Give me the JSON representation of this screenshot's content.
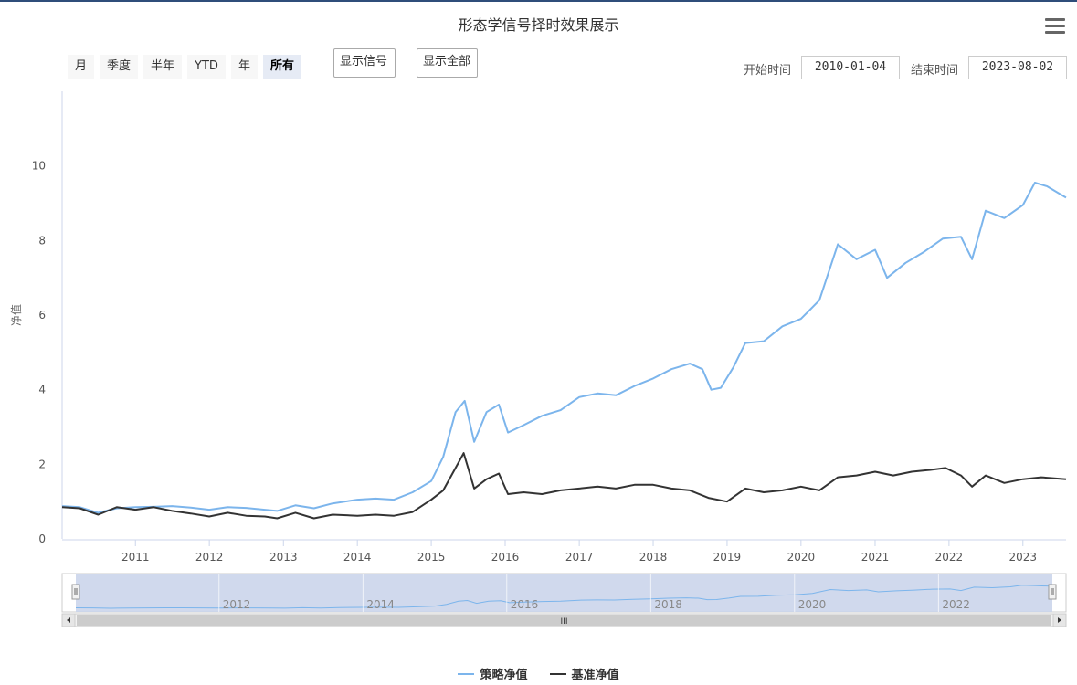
{
  "title": "形态学信号择时效果展示",
  "range_buttons": [
    {
      "label": "月",
      "active": false
    },
    {
      "label": "季度",
      "active": false
    },
    {
      "label": "半年",
      "active": false
    },
    {
      "label": "YTD",
      "active": false
    },
    {
      "label": "年",
      "active": false
    },
    {
      "label": "所有",
      "active": true
    }
  ],
  "buttons": {
    "show_signal": "显示信号",
    "show_all": "显示全部"
  },
  "date_range": {
    "start_label": "开始时间",
    "start_value": "2010-01-04",
    "end_label": "结束时间",
    "end_value": "2023-08-02"
  },
  "navigator": {
    "tick_labels": [
      "2012",
      "2014",
      "2016",
      "2018",
      "2020",
      "2022"
    ],
    "scroll_grip": "III"
  },
  "colors": {
    "strategy": "#7cb5ec",
    "benchmark": "#333333",
    "navigator_fill": "#c8d2ea",
    "axis_line": "#ccd6eb"
  },
  "chart_data": {
    "type": "line",
    "title": "形态学信号择时效果展示",
    "xlabel": "",
    "ylabel": "净值",
    "x_range": [
      "2010-01-04",
      "2023-08-02"
    ],
    "x_tick_labels": [
      "2011",
      "2012",
      "2013",
      "2014",
      "2015",
      "2016",
      "2017",
      "2018",
      "2019",
      "2020",
      "2021",
      "2022",
      "2023"
    ],
    "y_tick_labels": [
      "0",
      "2",
      "4",
      "6",
      "8",
      "10"
    ],
    "ylim": [
      0,
      12
    ],
    "grid": false,
    "legend_position": "bottom-center",
    "series": [
      {
        "name": "策略净值",
        "color": "#7cb5ec",
        "points": [
          [
            "2010-01-04",
            0.88
          ],
          [
            "2010-04-01",
            0.85
          ],
          [
            "2010-07-01",
            0.7
          ],
          [
            "2010-10-01",
            0.82
          ],
          [
            "2011-01-01",
            0.85
          ],
          [
            "2011-04-01",
            0.86
          ],
          [
            "2011-07-01",
            0.88
          ],
          [
            "2011-10-01",
            0.84
          ],
          [
            "2012-01-01",
            0.78
          ],
          [
            "2012-04-01",
            0.85
          ],
          [
            "2012-07-01",
            0.83
          ],
          [
            "2012-10-01",
            0.78
          ],
          [
            "2012-12-01",
            0.75
          ],
          [
            "2013-03-01",
            0.9
          ],
          [
            "2013-06-01",
            0.82
          ],
          [
            "2013-09-01",
            0.95
          ],
          [
            "2014-01-01",
            1.05
          ],
          [
            "2014-04-01",
            1.08
          ],
          [
            "2014-07-01",
            1.05
          ],
          [
            "2014-10-01",
            1.25
          ],
          [
            "2015-01-01",
            1.55
          ],
          [
            "2015-03-01",
            2.2
          ],
          [
            "2015-05-01",
            3.4
          ],
          [
            "2015-06-15",
            3.7
          ],
          [
            "2015-08-01",
            2.6
          ],
          [
            "2015-10-01",
            3.4
          ],
          [
            "2015-12-01",
            3.6
          ],
          [
            "2016-01-15",
            2.85
          ],
          [
            "2016-04-01",
            3.05
          ],
          [
            "2016-07-01",
            3.3
          ],
          [
            "2016-10-01",
            3.45
          ],
          [
            "2017-01-01",
            3.8
          ],
          [
            "2017-04-01",
            3.9
          ],
          [
            "2017-07-01",
            3.85
          ],
          [
            "2017-10-01",
            4.1
          ],
          [
            "2018-01-01",
            4.3
          ],
          [
            "2018-04-01",
            4.55
          ],
          [
            "2018-07-01",
            4.7
          ],
          [
            "2018-09-01",
            4.55
          ],
          [
            "2018-10-15",
            4.0
          ],
          [
            "2018-12-01",
            4.05
          ],
          [
            "2019-02-01",
            4.6
          ],
          [
            "2019-04-01",
            5.25
          ],
          [
            "2019-07-01",
            5.3
          ],
          [
            "2019-10-01",
            5.7
          ],
          [
            "2020-01-01",
            5.9
          ],
          [
            "2020-04-01",
            6.4
          ],
          [
            "2020-07-01",
            7.9
          ],
          [
            "2020-10-01",
            7.5
          ],
          [
            "2021-01-01",
            7.75
          ],
          [
            "2021-03-01",
            7.0
          ],
          [
            "2021-06-01",
            7.4
          ],
          [
            "2021-09-01",
            7.7
          ],
          [
            "2021-12-01",
            8.05
          ],
          [
            "2022-03-01",
            8.1
          ],
          [
            "2022-04-25",
            7.5
          ],
          [
            "2022-07-01",
            8.8
          ],
          [
            "2022-10-01",
            8.6
          ],
          [
            "2023-01-01",
            8.95
          ],
          [
            "2023-03-01",
            9.55
          ],
          [
            "2023-05-01",
            9.45
          ],
          [
            "2023-08-02",
            9.15
          ]
        ]
      },
      {
        "name": "基准净值",
        "color": "#333333",
        "points": [
          [
            "2010-01-04",
            0.85
          ],
          [
            "2010-04-01",
            0.82
          ],
          [
            "2010-07-01",
            0.65
          ],
          [
            "2010-10-01",
            0.85
          ],
          [
            "2011-01-01",
            0.78
          ],
          [
            "2011-04-01",
            0.85
          ],
          [
            "2011-07-01",
            0.75
          ],
          [
            "2011-10-01",
            0.68
          ],
          [
            "2012-01-01",
            0.6
          ],
          [
            "2012-04-01",
            0.7
          ],
          [
            "2012-07-01",
            0.62
          ],
          [
            "2012-10-01",
            0.6
          ],
          [
            "2012-12-01",
            0.55
          ],
          [
            "2013-03-01",
            0.7
          ],
          [
            "2013-06-01",
            0.55
          ],
          [
            "2013-09-01",
            0.65
          ],
          [
            "2014-01-01",
            0.62
          ],
          [
            "2014-04-01",
            0.65
          ],
          [
            "2014-07-01",
            0.62
          ],
          [
            "2014-10-01",
            0.72
          ],
          [
            "2015-01-01",
            1.05
          ],
          [
            "2015-03-01",
            1.3
          ],
          [
            "2015-05-01",
            1.9
          ],
          [
            "2015-06-10",
            2.3
          ],
          [
            "2015-08-01",
            1.35
          ],
          [
            "2015-10-01",
            1.6
          ],
          [
            "2015-12-01",
            1.75
          ],
          [
            "2016-01-15",
            1.2
          ],
          [
            "2016-04-01",
            1.25
          ],
          [
            "2016-07-01",
            1.2
          ],
          [
            "2016-10-01",
            1.3
          ],
          [
            "2017-01-01",
            1.35
          ],
          [
            "2017-04-01",
            1.4
          ],
          [
            "2017-07-01",
            1.35
          ],
          [
            "2017-10-01",
            1.45
          ],
          [
            "2018-01-01",
            1.45
          ],
          [
            "2018-04-01",
            1.35
          ],
          [
            "2018-07-01",
            1.3
          ],
          [
            "2018-10-01",
            1.1
          ],
          [
            "2019-01-01",
            1.0
          ],
          [
            "2019-04-01",
            1.35
          ],
          [
            "2019-07-01",
            1.25
          ],
          [
            "2019-10-01",
            1.3
          ],
          [
            "2020-01-01",
            1.4
          ],
          [
            "2020-04-01",
            1.3
          ],
          [
            "2020-07-01",
            1.65
          ],
          [
            "2020-10-01",
            1.7
          ],
          [
            "2021-01-01",
            1.8
          ],
          [
            "2021-04-01",
            1.7
          ],
          [
            "2021-07-01",
            1.8
          ],
          [
            "2021-10-01",
            1.85
          ],
          [
            "2021-12-15",
            1.9
          ],
          [
            "2022-03-01",
            1.7
          ],
          [
            "2022-04-25",
            1.4
          ],
          [
            "2022-07-01",
            1.7
          ],
          [
            "2022-10-01",
            1.5
          ],
          [
            "2023-01-01",
            1.6
          ],
          [
            "2023-04-01",
            1.65
          ],
          [
            "2023-08-02",
            1.6
          ]
        ]
      }
    ]
  }
}
